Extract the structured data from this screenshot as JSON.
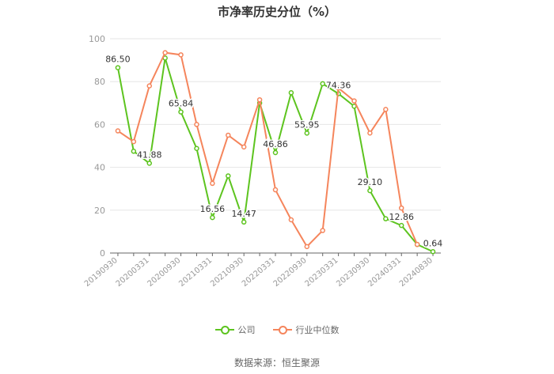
{
  "title": "市净率历史分位（%）",
  "source": "数据来源：恒生聚源",
  "colors": {
    "company": "#5dc41f",
    "industry": "#f5855c",
    "grid": "#e6e6e6",
    "axis": "#999999"
  },
  "chart_data": {
    "type": "line",
    "ylim": [
      0,
      100
    ],
    "yticks": [
      0,
      20,
      40,
      60,
      80,
      100
    ],
    "grid": true,
    "legend_position": "bottom",
    "x": [
      "20190930",
      "20191231",
      "20200331",
      "20200630",
      "20200930",
      "20201231",
      "20210331",
      "20210630",
      "20210930",
      "20211231",
      "20220331",
      "20220630",
      "20220930",
      "20221231",
      "20230331",
      "20230630",
      "20230930",
      "20231231",
      "20240331",
      "20240630",
      "20240830"
    ],
    "xtick_labels": [
      "20190930",
      "20200331",
      "20200930",
      "20210331",
      "20210930",
      "20220331",
      "20220930",
      "20230331",
      "20230930",
      "20240331",
      "20240830"
    ],
    "series": [
      {
        "name": "公司",
        "color": "#5dc41f",
        "values": [
          86.5,
          47.5,
          41.88,
          91.0,
          65.84,
          48.8,
          16.56,
          36.0,
          14.47,
          70.0,
          46.86,
          74.8,
          55.95,
          79.0,
          74.36,
          68.5,
          29.1,
          16.0,
          12.86,
          4.0,
          0.64
        ],
        "labels": {
          "0": "86.50",
          "2": "41.88",
          "4": "65.84",
          "6": "16.56",
          "8": "14.47",
          "10": "46.86",
          "12": "55.95",
          "14": "74.36",
          "16": "29.10",
          "18": "12.86",
          "20": "0.64"
        }
      },
      {
        "name": "行业中位数",
        "color": "#f5855c",
        "values": [
          57.0,
          52.0,
          78.0,
          93.5,
          92.5,
          60.0,
          32.5,
          55.0,
          49.5,
          71.5,
          29.5,
          15.5,
          3.0,
          10.5,
          77.0,
          71.0,
          56.0,
          67.0,
          21.0,
          4.0,
          null
        ]
      }
    ]
  }
}
